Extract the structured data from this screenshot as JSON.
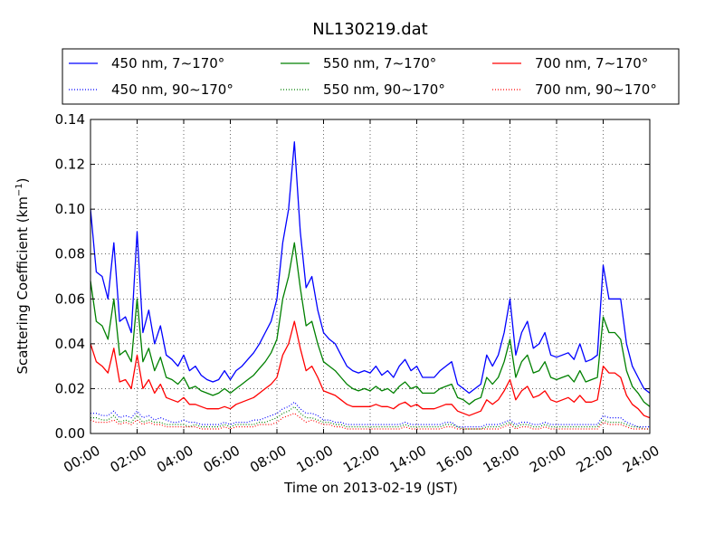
{
  "chart_data": {
    "type": "line",
    "title": "NL130219.dat",
    "xlabel": "Time on 2013-02-19 (JST)",
    "ylabel": "Scattering Coefficient (km",
    "ylabel_sup": "−1",
    "ylabel_tail": ")",
    "x_tick_labels": [
      "00:00",
      "02:00",
      "04:00",
      "06:00",
      "08:00",
      "10:00",
      "12:00",
      "14:00",
      "16:00",
      "18:00",
      "20:00",
      "22:00",
      "24:00"
    ],
    "y_tick_labels": [
      "0.00",
      "0.02",
      "0.04",
      "0.06",
      "0.08",
      "0.10",
      "0.12",
      "0.14"
    ],
    "xlim_hours": [
      0,
      24
    ],
    "ylim": [
      0,
      0.14
    ],
    "grid": true,
    "legend_position": "top, above plot, 3 columns",
    "x_hours": [
      0,
      0.25,
      0.5,
      0.75,
      1,
      1.25,
      1.5,
      1.75,
      2,
      2.25,
      2.5,
      2.75,
      3,
      3.25,
      3.5,
      3.75,
      4,
      4.25,
      4.5,
      4.75,
      5,
      5.25,
      5.5,
      5.75,
      6,
      6.25,
      6.5,
      6.75,
      7,
      7.25,
      7.5,
      7.75,
      8,
      8.25,
      8.5,
      8.75,
      9,
      9.25,
      9.5,
      9.75,
      10,
      10.25,
      10.5,
      10.75,
      11,
      11.25,
      11.5,
      11.75,
      12,
      12.25,
      12.5,
      12.75,
      13,
      13.25,
      13.5,
      13.75,
      14,
      14.25,
      14.5,
      14.75,
      15,
      15.25,
      15.5,
      15.75,
      16,
      16.25,
      16.5,
      16.75,
      17,
      17.25,
      17.5,
      17.75,
      18,
      18.25,
      18.5,
      18.75,
      19,
      19.25,
      19.5,
      19.75,
      20,
      20.25,
      20.5,
      20.75,
      21,
      21.25,
      21.5,
      21.75,
      22,
      22.25,
      22.5,
      22.75,
      23,
      23.25,
      23.5,
      23.75,
      24
    ],
    "series": [
      {
        "name": "450 nm, 7∼170°",
        "color": "#0000ff",
        "style": "solid",
        "values": [
          0.1,
          0.072,
          0.07,
          0.06,
          0.085,
          0.05,
          0.052,
          0.045,
          0.09,
          0.045,
          0.055,
          0.04,
          0.048,
          0.035,
          0.033,
          0.03,
          0.035,
          0.028,
          0.03,
          0.026,
          0.024,
          0.023,
          0.024,
          0.028,
          0.024,
          0.028,
          0.03,
          0.033,
          0.036,
          0.04,
          0.045,
          0.05,
          0.06,
          0.085,
          0.1,
          0.13,
          0.09,
          0.065,
          0.07,
          0.055,
          0.045,
          0.042,
          0.04,
          0.035,
          0.03,
          0.028,
          0.027,
          0.028,
          0.027,
          0.03,
          0.026,
          0.028,
          0.025,
          0.03,
          0.033,
          0.028,
          0.03,
          0.025,
          0.025,
          0.025,
          0.028,
          0.03,
          0.032,
          0.022,
          0.02,
          0.018,
          0.02,
          0.022,
          0.035,
          0.03,
          0.035,
          0.045,
          0.06,
          0.035,
          0.045,
          0.05,
          0.038,
          0.04,
          0.045,
          0.035,
          0.034,
          0.035,
          0.036,
          0.033,
          0.04,
          0.032,
          0.033,
          0.035,
          0.075,
          0.06,
          0.06,
          0.06,
          0.04,
          0.03,
          0.025,
          0.02,
          0.018
        ]
      },
      {
        "name": "450 nm, 90∼170°",
        "color": "#0000ff",
        "style": "dotted",
        "values": [
          0.009,
          0.009,
          0.008,
          0.008,
          0.01,
          0.007,
          0.008,
          0.007,
          0.01,
          0.007,
          0.008,
          0.006,
          0.007,
          0.006,
          0.005,
          0.005,
          0.006,
          0.005,
          0.005,
          0.004,
          0.004,
          0.004,
          0.004,
          0.005,
          0.004,
          0.005,
          0.005,
          0.005,
          0.006,
          0.006,
          0.007,
          0.008,
          0.009,
          0.011,
          0.012,
          0.014,
          0.011,
          0.009,
          0.009,
          0.008,
          0.006,
          0.006,
          0.005,
          0.005,
          0.004,
          0.004,
          0.004,
          0.004,
          0.004,
          0.004,
          0.004,
          0.004,
          0.004,
          0.004,
          0.005,
          0.004,
          0.004,
          0.004,
          0.004,
          0.004,
          0.004,
          0.005,
          0.005,
          0.003,
          0.003,
          0.003,
          0.003,
          0.003,
          0.004,
          0.004,
          0.004,
          0.005,
          0.006,
          0.004,
          0.005,
          0.005,
          0.004,
          0.004,
          0.005,
          0.004,
          0.004,
          0.004,
          0.004,
          0.004,
          0.004,
          0.004,
          0.004,
          0.004,
          0.008,
          0.007,
          0.007,
          0.007,
          0.005,
          0.004,
          0.003,
          0.003,
          0.003
        ]
      },
      {
        "name": "550 nm, 7∼170°",
        "color": "#008000",
        "style": "solid",
        "values": [
          0.068,
          0.05,
          0.048,
          0.042,
          0.06,
          0.035,
          0.037,
          0.032,
          0.06,
          0.032,
          0.038,
          0.028,
          0.034,
          0.025,
          0.024,
          0.022,
          0.025,
          0.02,
          0.021,
          0.019,
          0.018,
          0.017,
          0.018,
          0.02,
          0.018,
          0.02,
          0.022,
          0.024,
          0.026,
          0.029,
          0.032,
          0.036,
          0.042,
          0.06,
          0.07,
          0.085,
          0.065,
          0.048,
          0.05,
          0.04,
          0.032,
          0.03,
          0.028,
          0.025,
          0.022,
          0.02,
          0.019,
          0.02,
          0.019,
          0.021,
          0.019,
          0.02,
          0.018,
          0.021,
          0.023,
          0.02,
          0.021,
          0.018,
          0.018,
          0.018,
          0.02,
          0.021,
          0.022,
          0.016,
          0.015,
          0.013,
          0.015,
          0.016,
          0.025,
          0.022,
          0.025,
          0.032,
          0.042,
          0.025,
          0.032,
          0.035,
          0.027,
          0.028,
          0.032,
          0.025,
          0.024,
          0.025,
          0.026,
          0.023,
          0.028,
          0.023,
          0.024,
          0.025,
          0.052,
          0.045,
          0.045,
          0.042,
          0.028,
          0.021,
          0.018,
          0.014,
          0.012
        ]
      },
      {
        "name": "550 nm, 90∼170°",
        "color": "#008000",
        "style": "dotted",
        "values": [
          0.007,
          0.007,
          0.006,
          0.006,
          0.008,
          0.005,
          0.006,
          0.005,
          0.008,
          0.005,
          0.006,
          0.005,
          0.005,
          0.004,
          0.004,
          0.004,
          0.004,
          0.003,
          0.004,
          0.003,
          0.003,
          0.003,
          0.003,
          0.004,
          0.003,
          0.004,
          0.004,
          0.004,
          0.004,
          0.005,
          0.005,
          0.006,
          0.007,
          0.009,
          0.01,
          0.012,
          0.009,
          0.007,
          0.007,
          0.006,
          0.005,
          0.005,
          0.004,
          0.004,
          0.003,
          0.003,
          0.003,
          0.003,
          0.003,
          0.003,
          0.003,
          0.003,
          0.003,
          0.003,
          0.004,
          0.003,
          0.003,
          0.003,
          0.003,
          0.003,
          0.003,
          0.004,
          0.004,
          0.003,
          0.002,
          0.002,
          0.002,
          0.002,
          0.003,
          0.003,
          0.003,
          0.004,
          0.005,
          0.003,
          0.004,
          0.004,
          0.003,
          0.003,
          0.004,
          0.003,
          0.003,
          0.003,
          0.003,
          0.003,
          0.003,
          0.003,
          0.003,
          0.003,
          0.006,
          0.005,
          0.005,
          0.005,
          0.004,
          0.003,
          0.003,
          0.002,
          0.002
        ]
      },
      {
        "name": "700 nm, 7∼170°",
        "color": "#ff0000",
        "style": "solid",
        "values": [
          0.04,
          0.032,
          0.03,
          0.027,
          0.038,
          0.023,
          0.024,
          0.02,
          0.035,
          0.02,
          0.024,
          0.018,
          0.022,
          0.016,
          0.015,
          0.014,
          0.016,
          0.013,
          0.013,
          0.012,
          0.011,
          0.011,
          0.011,
          0.012,
          0.011,
          0.013,
          0.014,
          0.015,
          0.016,
          0.018,
          0.02,
          0.022,
          0.025,
          0.035,
          0.04,
          0.05,
          0.038,
          0.028,
          0.03,
          0.025,
          0.019,
          0.018,
          0.017,
          0.015,
          0.013,
          0.012,
          0.012,
          0.012,
          0.012,
          0.013,
          0.012,
          0.012,
          0.011,
          0.013,
          0.014,
          0.012,
          0.013,
          0.011,
          0.011,
          0.011,
          0.012,
          0.013,
          0.013,
          0.01,
          0.009,
          0.008,
          0.009,
          0.01,
          0.015,
          0.013,
          0.015,
          0.019,
          0.024,
          0.015,
          0.019,
          0.021,
          0.016,
          0.017,
          0.019,
          0.015,
          0.014,
          0.015,
          0.016,
          0.014,
          0.017,
          0.014,
          0.014,
          0.015,
          0.03,
          0.027,
          0.027,
          0.025,
          0.017,
          0.013,
          0.011,
          0.008,
          0.007
        ]
      },
      {
        "name": "700 nm, 90∼170°",
        "color": "#ff0000",
        "style": "dotted",
        "values": [
          0.006,
          0.005,
          0.005,
          0.005,
          0.006,
          0.004,
          0.005,
          0.004,
          0.006,
          0.004,
          0.005,
          0.004,
          0.004,
          0.003,
          0.003,
          0.003,
          0.003,
          0.003,
          0.003,
          0.002,
          0.002,
          0.002,
          0.002,
          0.003,
          0.002,
          0.003,
          0.003,
          0.003,
          0.003,
          0.004,
          0.004,
          0.004,
          0.005,
          0.007,
          0.008,
          0.009,
          0.007,
          0.005,
          0.006,
          0.005,
          0.004,
          0.004,
          0.003,
          0.003,
          0.002,
          0.002,
          0.002,
          0.002,
          0.002,
          0.002,
          0.002,
          0.002,
          0.002,
          0.002,
          0.003,
          0.002,
          0.002,
          0.002,
          0.002,
          0.002,
          0.002,
          0.003,
          0.003,
          0.002,
          0.002,
          0.002,
          0.002,
          0.002,
          0.002,
          0.002,
          0.002,
          0.003,
          0.004,
          0.002,
          0.003,
          0.003,
          0.002,
          0.002,
          0.003,
          0.002,
          0.002,
          0.002,
          0.002,
          0.002,
          0.002,
          0.002,
          0.002,
          0.002,
          0.005,
          0.004,
          0.004,
          0.004,
          0.003,
          0.002,
          0.002,
          0.002,
          0.002
        ]
      }
    ]
  }
}
